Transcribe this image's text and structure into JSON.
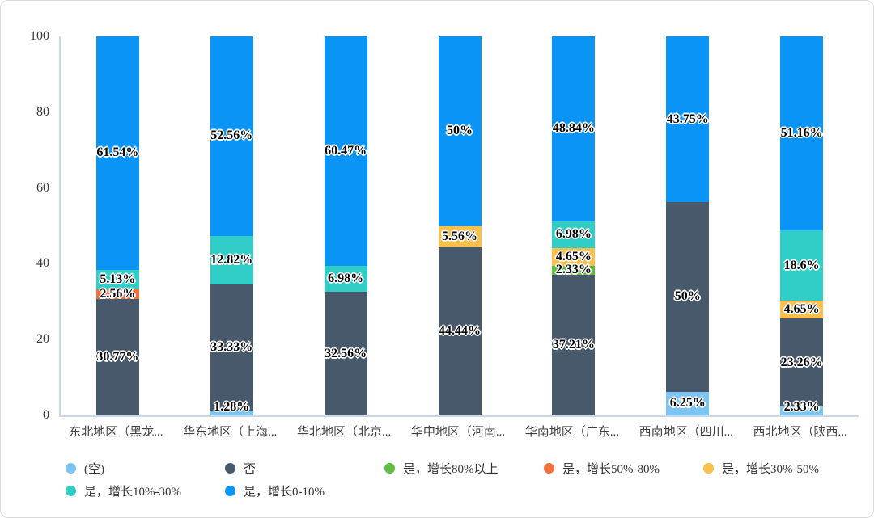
{
  "page": {
    "background": "#ffffff",
    "border_color": "#d9d9d9",
    "axis_line_color": "#c9d7ec"
  },
  "chart_data": {
    "type": "bar",
    "stacked": true,
    "percent_stacked": true,
    "title": "",
    "xlabel": "",
    "ylabel": "",
    "grid": false,
    "legend_position": "bottom",
    "y_axis": {
      "min": 0,
      "max": 100,
      "ticks": [
        0,
        20,
        40,
        60,
        80,
        100
      ]
    },
    "categories": [
      "东北地区（黑龙...",
      "华东地区（上海...",
      "华北地区（北京...",
      "华中地区（河南...",
      "华南地区（广东...",
      "西南地区（四川...",
      "西北地区（陕西..."
    ],
    "series": [
      {
        "name": "(空)",
        "color": "#7cc5f2",
        "values": [
          0,
          1.28,
          0,
          0,
          0,
          6.25,
          2.33
        ]
      },
      {
        "name": "否",
        "color": "#47596a",
        "values": [
          30.77,
          33.33,
          32.56,
          44.44,
          37.21,
          50,
          23.26
        ]
      },
      {
        "name": "是，增长80%以上",
        "color": "#5fbe41",
        "values": [
          0,
          0,
          0,
          0,
          2.33,
          0,
          0
        ]
      },
      {
        "name": "是，增长50%-80%",
        "color": "#f4703a",
        "values": [
          2.56,
          0,
          0,
          0,
          0,
          0,
          0
        ]
      },
      {
        "name": "是，增长30%-50%",
        "color": "#fbbf4b",
        "values": [
          0,
          0,
          0,
          5.56,
          4.65,
          0,
          4.65
        ]
      },
      {
        "name": "是，增长10%-30%",
        "color": "#31cec7",
        "values": [
          5.13,
          12.82,
          6.98,
          0,
          6.98,
          0,
          18.6
        ]
      },
      {
        "name": "是，增长0-10%",
        "color": "#0a94f5",
        "values": [
          61.54,
          52.56,
          60.47,
          50,
          48.84,
          43.75,
          51.16
        ]
      }
    ],
    "data_label_format": "value%",
    "data_label_style": {
      "color": "#000000",
      "outline": "#ffffff"
    }
  }
}
